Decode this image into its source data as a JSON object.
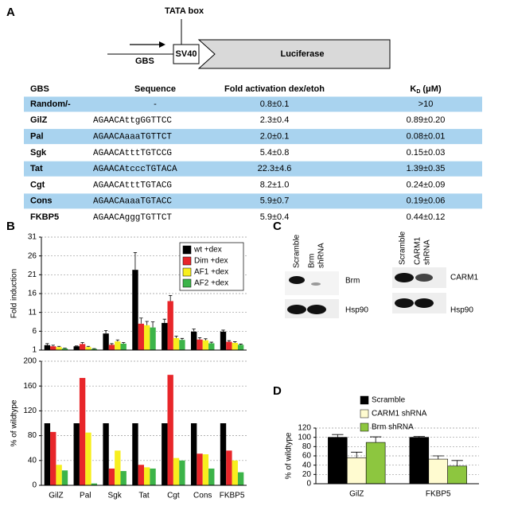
{
  "panel_labels": [
    "A",
    "B",
    "C",
    "D"
  ],
  "diagram": {
    "tata_label": "TATA box",
    "gbs_label": "GBS",
    "sv40_label": "SV40",
    "luciferase_label": "Luciferase"
  },
  "table": {
    "header": [
      "GBS",
      "Sequence",
      "Fold activation dex/etoh",
      {
        "text": "K",
        "sub": "D",
        "unit": "(μM)"
      }
    ],
    "rows": [
      [
        "Random/-",
        "-",
        "0.8±0.1",
        ">10"
      ],
      [
        "GilZ",
        "AGAACAttgGGTTCC",
        "2.3±0.4",
        "0.89±0.20"
      ],
      [
        "Pal",
        "AGAACAaaaTGTTCT",
        "2.0±0.1",
        "0.08±0.01"
      ],
      [
        "Sgk",
        "AGAACAtttTGTCCG",
        "5.4±0.8",
        "0.15±0.03"
      ],
      [
        "Tat",
        "AGAACAtcccTGTACA",
        "22.3±4.6",
        "1.39±0.35"
      ],
      [
        "Cgt",
        "AGAACAtttTGTACG",
        "8.2±1.0",
        "0.24±0.09"
      ],
      [
        "Cons",
        "AGAACAaaaTGTACC",
        "5.9±0.7",
        "0.19±0.06"
      ],
      [
        "FKBP5",
        "AGAACAgggTGTTCT",
        "5.9±0.4",
        "0.44±0.12"
      ]
    ]
  },
  "blots": [
    {
      "lanes": [
        "Scramble",
        [
          "Brm",
          "shRNA"
        ]
      ],
      "rows": [
        "Brm",
        "Hsp90"
      ]
    },
    {
      "lanes": [
        "Scramble",
        [
          "CARM1",
          "shRNA"
        ]
      ],
      "rows": [
        "CARM1",
        "Hsp90"
      ]
    }
  ],
  "chart_data": [
    {
      "type": "bar",
      "y_label": "Fold induction",
      "ylim": [
        1,
        31
      ],
      "yticks": [
        1,
        6,
        11,
        16,
        21,
        26,
        31
      ],
      "grid": true,
      "legend": "top-right",
      "series": [
        {
          "name": "wt +dex",
          "color": "#000000",
          "values": [
            2.3,
            2.0,
            5.4,
            22.3,
            8.2,
            5.9,
            5.9
          ],
          "errors": [
            0.4,
            0.1,
            0.8,
            4.6,
            1.0,
            0.7,
            0.4
          ]
        },
        {
          "name": "Dim +dex",
          "color": "#e8262a",
          "values": [
            2.0,
            2.6,
            2.4,
            8.0,
            14.0,
            3.8,
            3.2
          ],
          "errors": [
            0.3,
            0.4,
            0.3,
            1.5,
            1.5,
            0.5,
            0.3
          ]
        },
        {
          "name": "AF1 +dex",
          "color": "#f7ee1e",
          "values": [
            1.8,
            1.8,
            3.3,
            7.6,
            4.2,
            3.6,
            2.9
          ],
          "errors": [
            0.2,
            0.2,
            0.4,
            1.0,
            0.5,
            0.4,
            0.3
          ]
        },
        {
          "name": "AF2 +dex",
          "color": "#3cb449",
          "values": [
            1.4,
            1.3,
            2.7,
            7.0,
            3.7,
            2.8,
            2.4
          ],
          "errors": [
            0.1,
            0.1,
            0.3,
            1.5,
            0.4,
            0.3,
            0.2
          ]
        }
      ]
    },
    {
      "type": "bar",
      "y_label": "% of wildtype",
      "ylim": [
        0,
        200
      ],
      "yticks": [
        0,
        40,
        80,
        120,
        160,
        200
      ],
      "grid": true,
      "categories": [
        "GilZ",
        "Pal",
        "Sgk",
        "Tat",
        "Cgt",
        "Cons",
        "FKBP5"
      ],
      "series": [
        {
          "color": "#000000",
          "values": [
            100,
            100,
            100,
            100,
            100,
            100,
            100
          ]
        },
        {
          "color": "#e8262a",
          "values": [
            86,
            173,
            27,
            33,
            178,
            51,
            56
          ]
        },
        {
          "color": "#f7ee1e",
          "values": [
            33,
            85,
            56,
            29,
            44,
            50,
            40
          ]
        },
        {
          "color": "#3cb449",
          "values": [
            24,
            3,
            23,
            27,
            40,
            27,
            21
          ]
        }
      ]
    },
    {
      "type": "bar",
      "y_label": "% of wildtype",
      "ylim": [
        0,
        120
      ],
      "yticks": [
        0,
        20,
        40,
        60,
        80,
        100,
        120
      ],
      "grid": true,
      "legend": "top-left",
      "categories": [
        "GilZ",
        "FKBP5"
      ],
      "series": [
        {
          "name": "Scramble",
          "color": "#000000",
          "values": [
            100,
            100
          ],
          "errors": [
            6,
            2
          ]
        },
        {
          "name": "CARM1 shRNA",
          "color": "#fffbd0",
          "values": [
            56,
            53
          ],
          "errors": [
            12,
            7
          ]
        },
        {
          "name": "Brm shRNA",
          "color": "#8dc63f",
          "values": [
            89,
            38
          ],
          "errors": [
            12,
            12
          ]
        }
      ]
    }
  ]
}
